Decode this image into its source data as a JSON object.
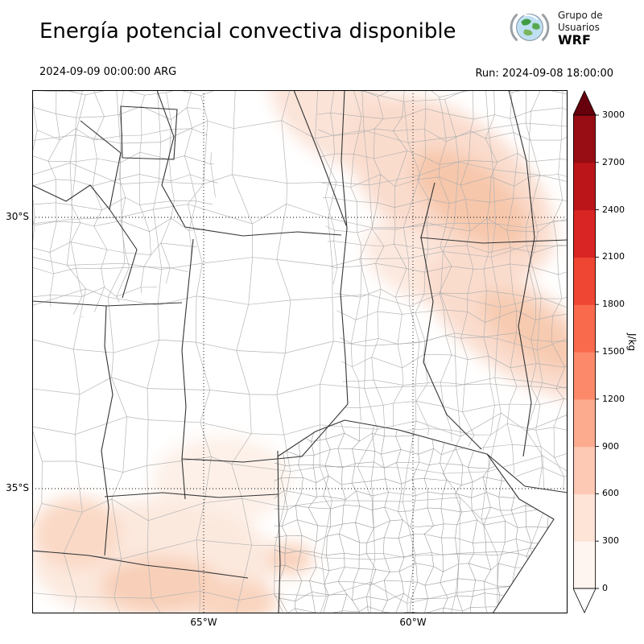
{
  "header": {
    "title": "Energía potencial convectiva disponible",
    "logo": {
      "line1": "Grupo de",
      "line2": "Usuarios",
      "line3": "WRF"
    }
  },
  "subheader": {
    "valid_time": "2024-09-09 00:00:00 ARG",
    "run_label": "Run: 2024-09-08 18:00:00"
  },
  "map": {
    "lat_ticks": [
      "30°S",
      "35°S"
    ],
    "lon_ticks": [
      "65°W",
      "60°W"
    ]
  },
  "colorbar": {
    "unit": "J/kg",
    "ticks": [
      "0",
      "300",
      "600",
      "900",
      "1200",
      "1500",
      "1800",
      "2100",
      "2400",
      "2700",
      "3000"
    ],
    "segment_colors_low_to_high": [
      "#fff5f0",
      "#fee3d7",
      "#fdc9b4",
      "#fcab8f",
      "#fc8a6a",
      "#f9694c",
      "#ef4533",
      "#d92523",
      "#bb151a",
      "#980c13"
    ],
    "arrow_top_color": "#67000d",
    "arrow_bottom_color": "#ffffff"
  }
}
